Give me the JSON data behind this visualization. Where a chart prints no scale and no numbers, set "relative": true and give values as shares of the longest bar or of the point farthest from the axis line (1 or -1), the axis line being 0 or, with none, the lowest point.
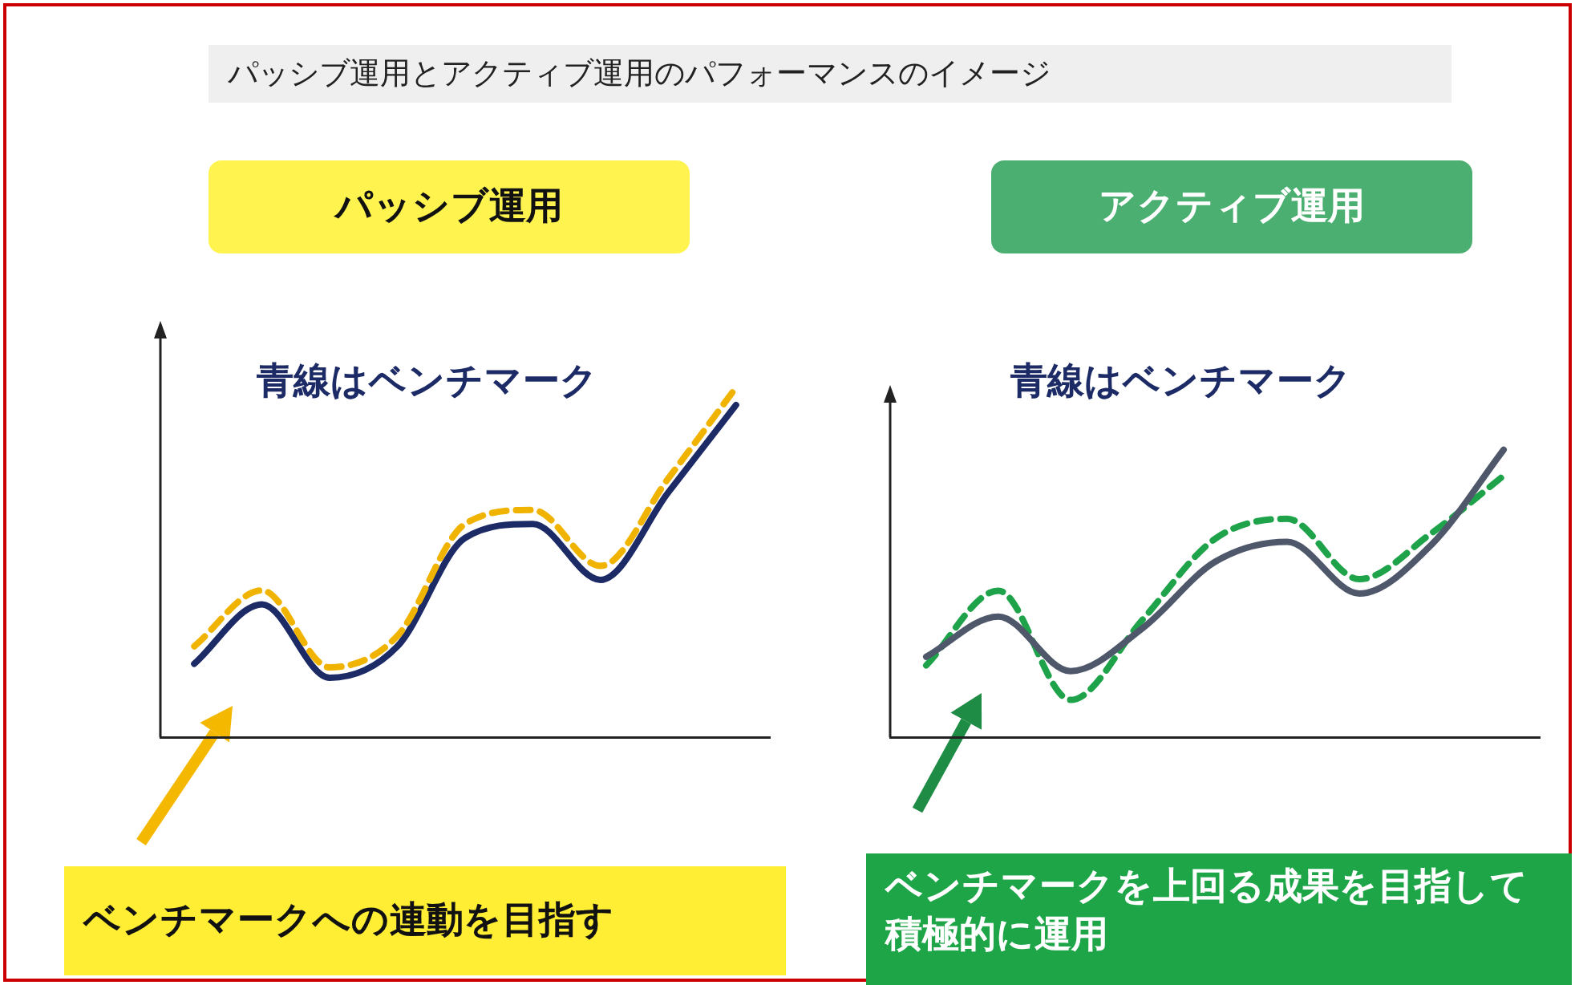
{
  "chart_data": [
    {
      "type": "line",
      "title": "パッシブ運用",
      "subtitle": "青線はベンチマーク",
      "annotations": [
        "パッシブ運用とアクティブ運用のパフォーマンスのイメージ",
        "ベンチマークへの連動を目指す"
      ],
      "relative": true,
      "marker": "none",
      "legend": false,
      "grid": false,
      "categories": [
        null,
        null,
        null,
        null,
        null,
        null,
        null,
        null,
        null
      ],
      "series": [
        {
          "color": "#f0b400",
          "line_style": "dashed",
          "values": [
            0.26,
            0.42,
            0.2,
            0.29,
            0.61,
            0.65,
            0.49,
            0.74,
            1
          ]
        },
        {
          "color": "#1c2a66",
          "line_style": "solid",
          "values": [
            0.21,
            0.38,
            0.17,
            0.26,
            0.57,
            0.61,
            0.45,
            0.7,
            0.95
          ]
        }
      ]
    },
    {
      "type": "line",
      "title": "アクティブ運用",
      "subtitle": "青線はベンチマーク",
      "annotations": [
        "ベンチマークを上回る成果を目指して積極的に運用"
      ],
      "relative": true,
      "marker": "none",
      "legend": false,
      "grid": false,
      "categories": [
        null,
        null,
        null,
        null,
        null,
        null,
        null,
        null,
        null
      ],
      "series": [
        {
          "color": "#4f586b",
          "line_style": "solid",
          "values": [
            0.28,
            0.42,
            0.23,
            0.38,
            0.61,
            0.68,
            0.5,
            0.67,
            1
          ]
        },
        {
          "color": "#1fa34a",
          "line_style": "dashed",
          "values": [
            0.25,
            0.51,
            0.13,
            0.41,
            0.69,
            0.76,
            0.55,
            0.71,
            0.91
          ]
        }
      ]
    }
  ]
}
